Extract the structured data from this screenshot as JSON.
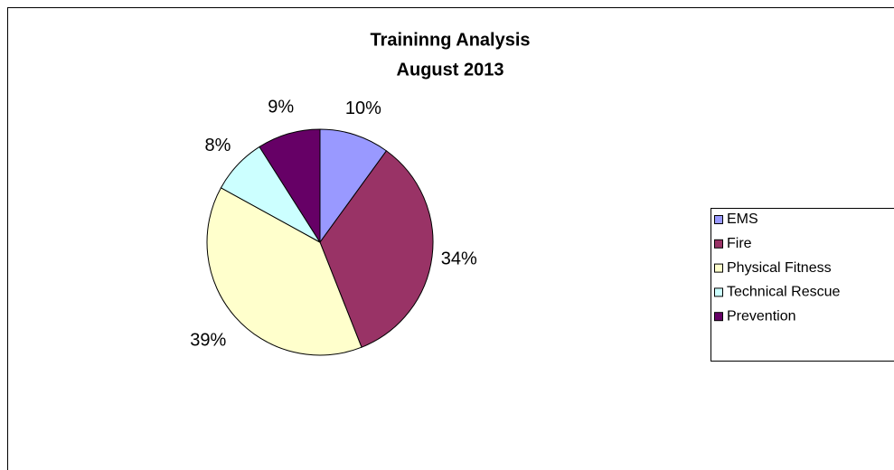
{
  "chart_data": {
    "type": "pie",
    "title": [
      "Traininng Analysis",
      "August 2013"
    ],
    "categories": [
      "EMS",
      "Fire",
      "Physical Fitness",
      "Technical Rescue",
      "Prevention"
    ],
    "values": [
      10,
      34,
      39,
      8,
      9
    ],
    "value_labels": [
      "10%",
      "34%",
      "39%",
      "8%",
      "9%"
    ],
    "colors": [
      "#9999ff",
      "#993366",
      "#ffffcc",
      "#ccffff",
      "#660066"
    ],
    "legend": "right"
  }
}
